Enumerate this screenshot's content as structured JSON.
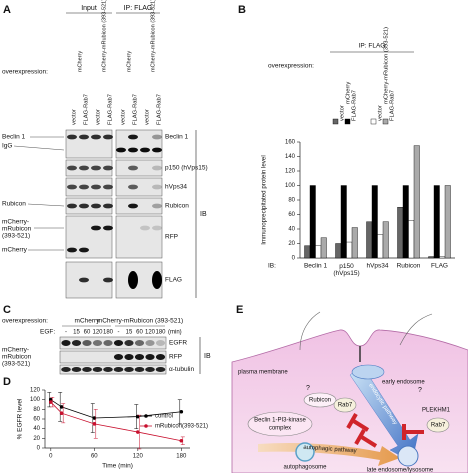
{
  "panel_labels": [
    "A",
    "B",
    "C",
    "D",
    "E"
  ],
  "panel_a": {
    "header_input": "Input",
    "header_ip": "IP: FLAG",
    "overexpression": "overexpression:",
    "groups": [
      "mCherry",
      "mCherry-mRubicon (393-521)",
      "mCherry",
      "mCherry-mRubicon (393-521)"
    ],
    "lanes": [
      "vector",
      "FLAG-Rab7",
      "vector",
      "FLAG-Rab7",
      "vector",
      "FLAG-Rab7",
      "vector",
      "FLAG-Rab7"
    ],
    "right_labels": [
      "Beclin 1",
      "p150 (hVps15)",
      "hVps34",
      "Rubicon",
      "RFP",
      "FLAG"
    ],
    "ib": "IB",
    "left_labels": {
      "beclin": "Beclin 1",
      "igg": "IgG",
      "rubicon": "Rubicon",
      "construct": [
        "mCherry-",
        "mRubicon",
        "(393-521)"
      ],
      "mcherry": "mCherry"
    }
  },
  "chart_data": [
    {
      "type": "bar",
      "header": "IP: FLAG",
      "overexpression_label": "overexpression:",
      "groups": [
        "mCherry",
        "mCherry-mRubicon (393-521)"
      ],
      "y_label": "Immunoprecipitated protein level",
      "category_prefix": "IB:",
      "categories": [
        "Beclin 1",
        "p150 (hVps15)",
        "hVps34",
        "Rubicon",
        "FLAG"
      ],
      "series": [
        {
          "name": "vector",
          "color": "#666666",
          "values": [
            17,
            20,
            50,
            70,
            2
          ]
        },
        {
          "name": "FLAG-Rab7",
          "color": "#000000",
          "values": [
            100,
            100,
            100,
            100,
            100
          ]
        },
        {
          "name": "vector",
          "color": "#ffffff",
          "values": [
            17,
            22,
            32,
            52,
            2
          ]
        },
        {
          "name": "FLAG-Rab7",
          "color": "#aaaaaa",
          "values": [
            28,
            42,
            50,
            155,
            100
          ]
        }
      ],
      "ylim": [
        0,
        160
      ],
      "yticks": [
        0,
        20,
        40,
        60,
        80,
        100,
        120,
        140,
        160
      ]
    },
    {
      "type": "line",
      "x_label": "Time (min)",
      "y_label": "% EGFR level",
      "x": [
        0,
        15,
        60,
        120,
        180
      ],
      "xlim": [
        -8,
        192
      ],
      "xticks": [
        0,
        60,
        120,
        180
      ],
      "ylim": [
        0,
        120
      ],
      "yticks": [
        0,
        20,
        40,
        60,
        80,
        100,
        120
      ],
      "series": [
        {
          "name": "control",
          "color": "#000000",
          "values": [
            100,
            85,
            62,
            65,
            75
          ],
          "errors": [
            15,
            30,
            30,
            25,
            25
          ]
        },
        {
          "name": "mRubicon(393-521)",
          "color": "#c8102e",
          "values": [
            95,
            72,
            50,
            33,
            15
          ],
          "errors": [
            10,
            20,
            30,
            35,
            8
          ]
        }
      ]
    }
  ],
  "panel_c": {
    "overexpression": "overexpression:",
    "groups": [
      "mCherry",
      "mCherry-mRubicon (393-521)"
    ],
    "egf_label": "EGF:",
    "lanes": [
      "-",
      "15",
      "60",
      "120",
      "180",
      "-",
      "15",
      "60",
      "120",
      "180"
    ],
    "unit": "(min)",
    "right_labels": [
      "EGFR",
      "RFP",
      "α-tubulin"
    ],
    "ib": "IB",
    "left_label": [
      "mCherry-",
      "mRubicon",
      "(393-521)"
    ]
  },
  "panel_e": {
    "plasma_membrane": "plasma membrane",
    "early_endosome": "early endosome",
    "rubicon": "Rubicon",
    "rab7_a": "Rab7",
    "beclin": [
      "Beclin 1-PI3-kinase",
      "complex"
    ],
    "plekhm1": "PLEKHM1",
    "rab7_b": "Rab7",
    "endocytic": "endocytic pathway",
    "autophagic": "autophagic pathway",
    "autophagosome": "autophagosome",
    "late": "late endosome/lysosome",
    "question": [
      "?",
      "?"
    ]
  }
}
